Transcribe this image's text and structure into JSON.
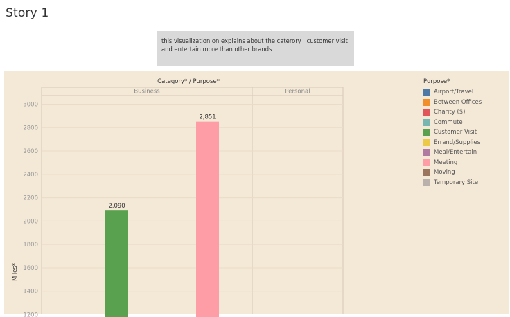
{
  "story": {
    "title": "Story 1"
  },
  "caption": {
    "text": "this visualization on explains about the caterory . customer visit and entertain more than other brands"
  },
  "chart_data": {
    "type": "bar",
    "header": "Category* / Purpose*",
    "ylabel": "Miles*",
    "panels": [
      {
        "name": "Business",
        "bars": [
          {
            "purpose": "Customer Visit",
            "value": 2090,
            "label": "2,090"
          },
          {
            "purpose": "Meeting",
            "value": 2851,
            "label": "2,851"
          }
        ]
      },
      {
        "name": "Personal",
        "bars": []
      }
    ],
    "ylim": [
      1200,
      3100
    ],
    "yticks": [
      "3000",
      "2800",
      "2600",
      "2400",
      "2200",
      "2000",
      "1800",
      "1600",
      "1400",
      "1200"
    ],
    "grid": true,
    "legend": {
      "title": "Purpose*",
      "position": "right",
      "items": [
        {
          "label": "Airport/Travel",
          "color": "#4e79a7"
        },
        {
          "label": "Between Offices",
          "color": "#f28e2b"
        },
        {
          "label": "Charity ($)",
          "color": "#e15759"
        },
        {
          "label": "Commute",
          "color": "#76b7b2"
        },
        {
          "label": "Customer Visit",
          "color": "#59a14f"
        },
        {
          "label": "Errand/Supplies",
          "color": "#edc948"
        },
        {
          "label": "Meal/Entertain",
          "color": "#b07aa1"
        },
        {
          "label": "Meeting",
          "color": "#ff9da7"
        },
        {
          "label": "Moving",
          "color": "#9c755f"
        },
        {
          "label": "Temporary Site",
          "color": "#bab0ac"
        }
      ]
    }
  }
}
